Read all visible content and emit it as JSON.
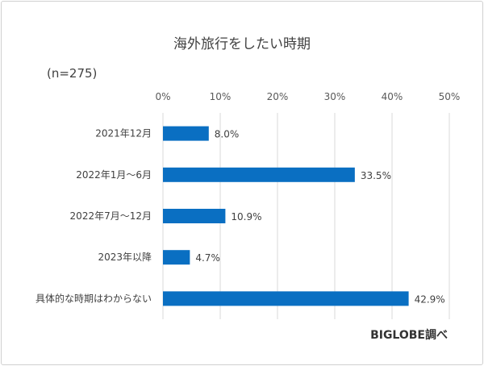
{
  "chart_data": {
    "type": "bar",
    "orientation": "horizontal",
    "title": "海外旅行をしたい時期",
    "subtitle": "(n=275)",
    "source": "BIGLOBE調べ",
    "categories": [
      "2021年12月",
      "2022年1月～6月",
      "2022年7月～12月",
      "2023年以降",
      "具体的な時期はわからない"
    ],
    "values": [
      8.0,
      33.5,
      10.9,
      4.7,
      42.9
    ],
    "data_labels": [
      "8.0%",
      "33.5%",
      "10.9%",
      "4.7%",
      "42.9%"
    ],
    "xlim": [
      0,
      50
    ],
    "x_ticks": [
      "0%",
      "10%",
      "20%",
      "30%",
      "40%",
      "50%"
    ],
    "x_axis_position": "top",
    "grid": true,
    "bar_color": "#0a6fc2"
  }
}
